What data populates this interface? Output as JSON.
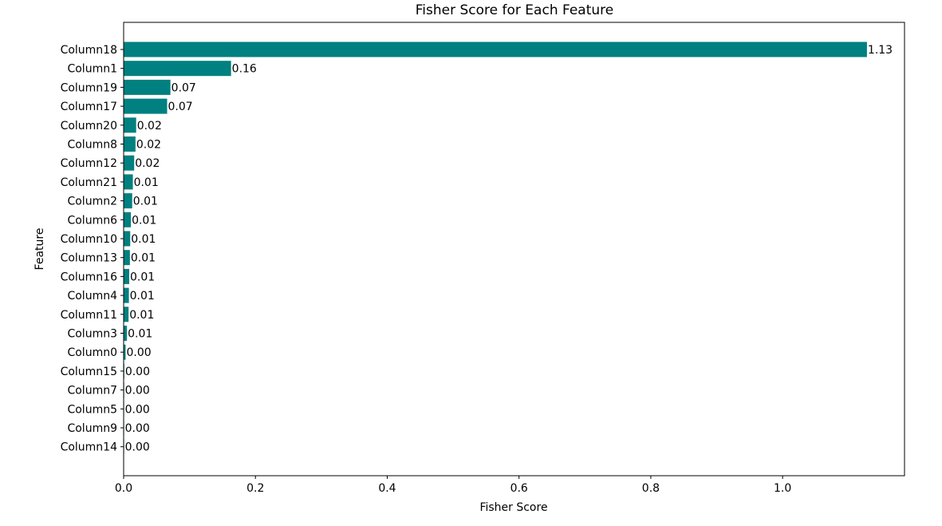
{
  "chart_data": {
    "type": "bar",
    "orientation": "horizontal",
    "title": "Fisher Score for Each Feature",
    "xlabel": "Fisher Score",
    "ylabel": "Feature",
    "categories": [
      "Column18",
      "Column1",
      "Column19",
      "Column17",
      "Column20",
      "Column8",
      "Column12",
      "Column21",
      "Column2",
      "Column6",
      "Column10",
      "Column13",
      "Column16",
      "Column4",
      "Column11",
      "Column3",
      "Column0",
      "Column15",
      "Column7",
      "Column5",
      "Column9",
      "Column14"
    ],
    "values": [
      1.128,
      0.163,
      0.071,
      0.066,
      0.019,
      0.018,
      0.016,
      0.014,
      0.013,
      0.011,
      0.01,
      0.0095,
      0.0085,
      0.008,
      0.0075,
      0.005,
      0.003,
      0.001,
      0.0008,
      0.0006,
      0.0005,
      0.0004
    ],
    "data_labels": [
      "1.13",
      "0.16",
      "0.07",
      "0.07",
      "0.02",
      "0.02",
      "0.02",
      "0.01",
      "0.01",
      "0.01",
      "0.01",
      "0.01",
      "0.01",
      "0.01",
      "0.01",
      "0.01",
      "0.00",
      "0.00",
      "0.00",
      "0.00",
      "0.00",
      "0.00"
    ],
    "xlim": [
      0,
      1.185
    ],
    "xticks": [
      0.0,
      0.2,
      0.4,
      0.6,
      0.8,
      1.0
    ],
    "xtick_labels": [
      "0.0",
      "0.2",
      "0.4",
      "0.6",
      "0.8",
      "1.0"
    ],
    "bar_color": "#008080",
    "grid": false,
    "legend": "none"
  }
}
